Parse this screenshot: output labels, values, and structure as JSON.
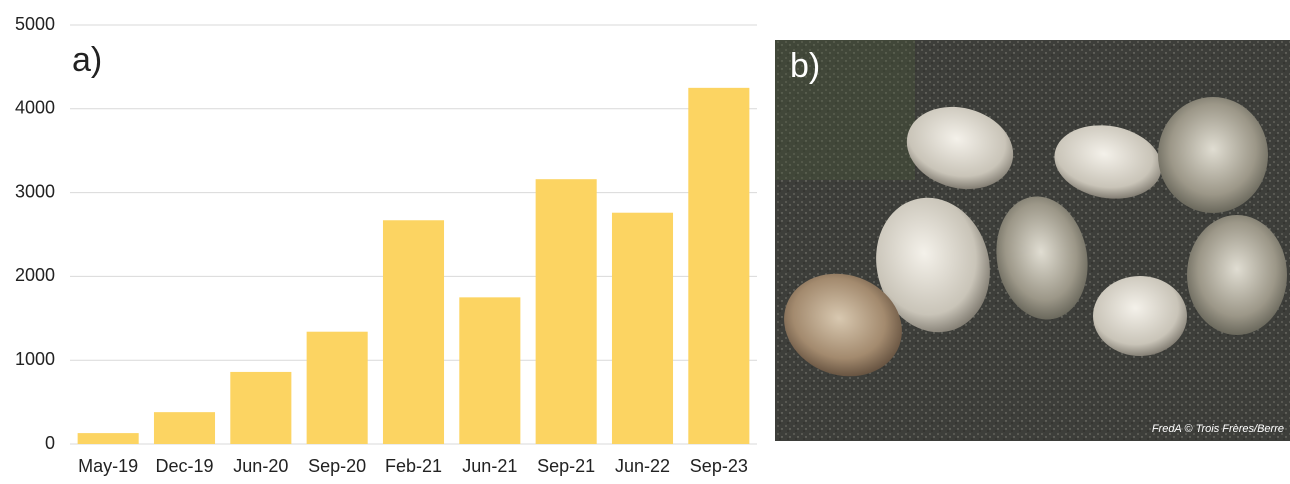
{
  "chart_data": {
    "type": "bar",
    "panel_label": "a)",
    "categories": [
      "May-19",
      "Dec-19",
      "Jun-20",
      "Sep-20",
      "Feb-21",
      "Jun-21",
      "Sep-21",
      "Jun-22",
      "Sep-23"
    ],
    "values": [
      130,
      380,
      860,
      1340,
      2670,
      1750,
      3160,
      2760,
      4250
    ],
    "color": "#fcd462",
    "ylim": [
      0,
      5000
    ],
    "yticks": [
      0,
      1000,
      2000,
      3000,
      4000,
      5000
    ],
    "grid": true
  },
  "photo": {
    "panel_label": "b)",
    "credit": "FredA © Trois Frères/Berre"
  }
}
